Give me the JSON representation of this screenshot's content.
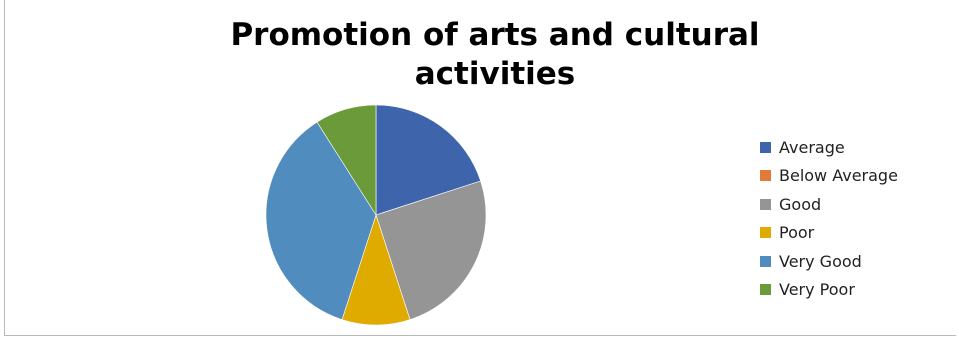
{
  "chart_data": {
    "type": "pie",
    "title": "Promotion of arts and cultural activities",
    "categories": [
      "Average",
      "Below Average",
      "Good",
      "Poor",
      "Very Good",
      "Very Poor"
    ],
    "values": [
      20,
      0,
      25,
      10,
      36,
      9
    ],
    "colors": [
      "#3e65ac",
      "#e07b39",
      "#959595",
      "#e0ab00",
      "#518cbe",
      "#6b9a3a"
    ],
    "legend_position": "right"
  }
}
